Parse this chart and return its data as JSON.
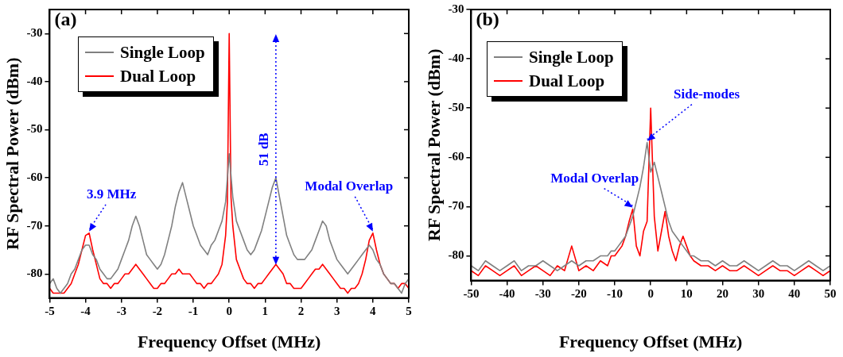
{
  "chart_data": [
    {
      "type": "line",
      "title": "(a)",
      "xlabel": "Frequency Offset (MHz)",
      "ylabel": "RF Spectral Power (dBm)",
      "xlim": [
        -5,
        5
      ],
      "xticks": [
        -5,
        -4,
        -3,
        -2,
        -1,
        0,
        1,
        2,
        3,
        4,
        5
      ],
      "ylim": [
        -85,
        -25
      ],
      "yticks": [
        -80,
        -70,
        -60,
        -50,
        -40,
        -30
      ],
      "grid": false,
      "legend": "top left",
      "marker": "none",
      "line_style": "solid",
      "annotations": [
        {
          "text": "3.9 MHz",
          "x": -3.9,
          "y": -71.5
        },
        "51 dB",
        {
          "text": "Modal Overlap",
          "x": 4,
          "y": -71.5
        }
      ],
      "series": [
        {
          "name": "Single Loop",
          "color": "#808080",
          "x": [
            -5.0,
            -4.9,
            -4.8,
            -4.7,
            -4.6,
            -4.5,
            -4.4,
            -4.3,
            -4.2,
            -4.1,
            -4.0,
            -3.9,
            -3.8,
            -3.7,
            -3.6,
            -3.5,
            -3.4,
            -3.3,
            -3.2,
            -3.1,
            -3.0,
            -2.9,
            -2.8,
            -2.7,
            -2.6,
            -2.5,
            -2.4,
            -2.3,
            -2.2,
            -2.1,
            -2.0,
            -1.9,
            -1.8,
            -1.7,
            -1.6,
            -1.5,
            -1.4,
            -1.3,
            -1.2,
            -1.1,
            -1.0,
            -0.9,
            -0.8,
            -0.7,
            -0.6,
            -0.5,
            -0.4,
            -0.3,
            -0.2,
            -0.1,
            0,
            0.1,
            0.2,
            0.3,
            0.4,
            0.5,
            0.6,
            0.7,
            0.8,
            0.9,
            1.0,
            1.1,
            1.2,
            1.3,
            1.4,
            1.5,
            1.6,
            1.7,
            1.8,
            1.9,
            2.0,
            2.1,
            2.2,
            2.3,
            2.4,
            2.5,
            2.6,
            2.7,
            2.8,
            2.9,
            3.0,
            3.1,
            3.2,
            3.3,
            3.4,
            3.5,
            3.6,
            3.7,
            3.8,
            3.9,
            4.0,
            4.1,
            4.2,
            4.3,
            4.4,
            4.5,
            4.6,
            4.7,
            4.8,
            4.9,
            5.0
          ],
          "values": [
            -82,
            -81,
            -83,
            -84,
            -83,
            -82,
            -80,
            -79,
            -77,
            -75,
            -74,
            -74,
            -76,
            -77,
            -79,
            -80,
            -81,
            -81,
            -80,
            -79,
            -77,
            -75,
            -73,
            -70,
            -68,
            -70,
            -73,
            -76,
            -77,
            -78,
            -79,
            -78,
            -76,
            -73,
            -70,
            -66,
            -63,
            -61,
            -64,
            -67,
            -70,
            -72,
            -74,
            -75,
            -76,
            -74,
            -73,
            -71,
            -69,
            -65,
            -55,
            -64,
            -69,
            -71,
            -73,
            -75,
            -76,
            -75,
            -73,
            -71,
            -68,
            -65,
            -62,
            -60,
            -64,
            -68,
            -72,
            -74,
            -76,
            -77,
            -77,
            -77,
            -76,
            -75,
            -73,
            -71,
            -69,
            -70,
            -73,
            -75,
            -77,
            -78,
            -79,
            -80,
            -79,
            -78,
            -77,
            -76,
            -75,
            -74,
            -75,
            -77,
            -78,
            -80,
            -81,
            -82,
            -82,
            -83,
            -84,
            -82,
            -81
          ]
        },
        {
          "name": "Dual Loop",
          "color": "#ff0000",
          "x": [
            -5.0,
            -4.9,
            -4.8,
            -4.7,
            -4.6,
            -4.5,
            -4.4,
            -4.3,
            -4.2,
            -4.1,
            -4.0,
            -3.9,
            -3.8,
            -3.7,
            -3.6,
            -3.5,
            -3.4,
            -3.3,
            -3.2,
            -3.1,
            -3.0,
            -2.9,
            -2.8,
            -2.7,
            -2.6,
            -2.5,
            -2.4,
            -2.3,
            -2.2,
            -2.1,
            -2.0,
            -1.9,
            -1.8,
            -1.7,
            -1.6,
            -1.5,
            -1.4,
            -1.3,
            -1.2,
            -1.1,
            -1.0,
            -0.9,
            -0.8,
            -0.7,
            -0.6,
            -0.5,
            -0.4,
            -0.3,
            -0.2,
            -0.1,
            -0.05,
            0,
            0.05,
            0.1,
            0.2,
            0.3,
            0.4,
            0.5,
            0.6,
            0.7,
            0.8,
            0.9,
            1.0,
            1.1,
            1.2,
            1.3,
            1.4,
            1.5,
            1.6,
            1.7,
            1.8,
            1.9,
            2.0,
            2.1,
            2.2,
            2.3,
            2.4,
            2.5,
            2.6,
            2.7,
            2.8,
            2.9,
            3.0,
            3.1,
            3.2,
            3.3,
            3.4,
            3.5,
            3.6,
            3.7,
            3.8,
            3.9,
            4.0,
            4.1,
            4.2,
            4.3,
            4.4,
            4.5,
            4.6,
            4.7,
            4.8,
            4.9,
            5.0
          ],
          "values": [
            -83,
            -84,
            -84,
            -84,
            -84,
            -83,
            -82,
            -80,
            -78,
            -75,
            -72,
            -71.5,
            -75,
            -78,
            -81,
            -82,
            -82,
            -83,
            -82,
            -82,
            -81,
            -80,
            -80,
            -79,
            -78,
            -79,
            -80,
            -81,
            -82,
            -83,
            -83,
            -82,
            -82,
            -81,
            -80,
            -80,
            -79,
            -80,
            -80,
            -80,
            -81,
            -82,
            -82,
            -83,
            -82,
            -82,
            -81,
            -80,
            -78,
            -72,
            -65,
            -30,
            -64,
            -70,
            -77,
            -79,
            -81,
            -82,
            -82,
            -83,
            -82,
            -82,
            -81,
            -80,
            -79,
            -78,
            -79,
            -80,
            -82,
            -82,
            -83,
            -83,
            -83,
            -82,
            -81,
            -80,
            -79,
            -79,
            -78,
            -79,
            -80,
            -81,
            -82,
            -83,
            -83,
            -84,
            -83,
            -83,
            -82,
            -80,
            -77,
            -73,
            -71.5,
            -75,
            -78,
            -80,
            -81,
            -82,
            -82,
            -83,
            -82,
            -82,
            -83
          ]
        }
      ]
    },
    {
      "type": "line",
      "title": "(b)",
      "xlabel": "Frequency Offset (MHz)",
      "ylabel": "RF Spectral Power (dBm)",
      "xlim": [
        -50,
        50
      ],
      "xticks": [
        -50,
        -40,
        -30,
        -20,
        -10,
        0,
        10,
        20,
        30,
        40,
        50
      ],
      "ylim": [
        -85,
        -30
      ],
      "yticks": [
        -80,
        -70,
        -60,
        -50,
        -40,
        -30
      ],
      "grid": false,
      "legend": "top left",
      "marker": "none",
      "line_style": "solid",
      "annotations": [
        {
          "text": "Side-modes",
          "x": -1,
          "y": -57
        },
        {
          "text": "Modal Overlap",
          "x": -5,
          "y": -70.5
        }
      ],
      "x": [
        -50,
        -48,
        -46,
        -44,
        -42,
        -40,
        -38,
        -36,
        -34,
        -32,
        -30,
        -28,
        -26,
        -24,
        -22,
        -20,
        -18,
        -16,
        -14,
        -12,
        -11,
        -10,
        -9,
        -8,
        -7,
        -6,
        -5,
        -4,
        -3,
        -2,
        -1,
        0,
        1,
        2,
        3,
        4,
        5,
        6,
        7,
        8,
        9,
        10,
        11,
        12,
        14,
        16,
        18,
        20,
        22,
        24,
        26,
        28,
        30,
        32,
        34,
        36,
        38,
        40,
        42,
        44,
        46,
        48,
        50
      ],
      "series": [
        {
          "name": "Single Loop",
          "color": "#808080",
          "values": [
            -82,
            -83,
            -81,
            -82,
            -83,
            -82,
            -81,
            -83,
            -82,
            -82,
            -81,
            -82,
            -83,
            -82,
            -81,
            -82,
            -81,
            -81,
            -80,
            -80,
            -79,
            -79,
            -78,
            -77,
            -76,
            -74,
            -72,
            -69,
            -66,
            -62,
            -57,
            -63,
            -61,
            -64,
            -67,
            -70,
            -73,
            -75,
            -76,
            -77,
            -78,
            -79,
            -80,
            -80,
            -81,
            -81,
            -82,
            -81,
            -82,
            -82,
            -81,
            -82,
            -83,
            -82,
            -81,
            -82,
            -82,
            -83,
            -82,
            -81,
            -82,
            -83,
            -82
          ]
        },
        {
          "name": "Dual Loop",
          "color": "#ff0000",
          "values": [
            -83,
            -84,
            -82,
            -83,
            -84,
            -83,
            -82,
            -84,
            -83,
            -82,
            -83,
            -84,
            -82,
            -83,
            -78,
            -83,
            -82,
            -83,
            -81,
            -82,
            -80,
            -80,
            -79,
            -78,
            -76,
            -73,
            -70.5,
            -78,
            -80,
            -75,
            -73,
            -50,
            -72,
            -79,
            -75,
            -71,
            -76,
            -79,
            -81,
            -78,
            -76,
            -78,
            -80,
            -81,
            -82,
            -82,
            -83,
            -82,
            -83,
            -83,
            -82,
            -83,
            -84,
            -83,
            -82,
            -83,
            -83,
            -84,
            -83,
            -82,
            -83,
            -84,
            -83
          ]
        }
      ]
    }
  ]
}
